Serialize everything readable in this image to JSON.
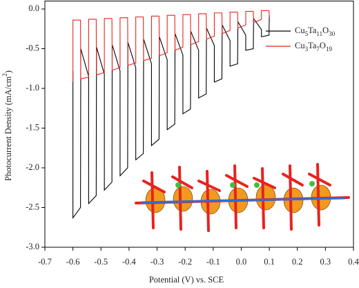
{
  "chart_data": {
    "type": "line",
    "xlabel": "Potential (V) vs. SCE",
    "ylabel": "Photocurrent Density (mA/cm2)",
    "xlim": [
      -0.7,
      0.4
    ],
    "ylim": [
      -3.0,
      0.1
    ],
    "xticks": [
      -0.7,
      -0.6,
      -0.5,
      -0.4,
      -0.3,
      -0.2,
      -0.1,
      {
        "value": 0,
        "label": "0.0"
      },
      0.1,
      0.2,
      0.3,
      0.4
    ],
    "yticks": [
      {
        "value": 0,
        "label": "0.0"
      },
      -0.5,
      {
        "value": -1,
        "label": "-1.0"
      },
      -1.5,
      {
        "value": -2,
        "label": "-2.0"
      },
      -2.5,
      {
        "value": -3,
        "label": "-3.0"
      }
    ],
    "grid": false,
    "legend": "upper right",
    "x": [
      -0.6,
      -0.6,
      -0.573,
      -0.572,
      -0.544,
      -0.544,
      -0.517,
      -0.516,
      -0.488,
      -0.488,
      -0.461,
      -0.46,
      -0.432,
      -0.432,
      -0.405,
      -0.404,
      -0.376,
      -0.376,
      -0.349,
      -0.348,
      -0.32,
      -0.32,
      -0.293,
      -0.292,
      -0.264,
      -0.264,
      -0.237,
      -0.236,
      -0.208,
      -0.208,
      -0.181,
      -0.18,
      -0.152,
      -0.152,
      -0.125,
      -0.124,
      -0.096,
      -0.096,
      -0.069,
      -0.068,
      -0.04,
      -0.04,
      -0.013,
      -0.012,
      0.016,
      0.016,
      0.043,
      0.044,
      0.072,
      0.072,
      0.099,
      0.1
    ],
    "series": [
      {
        "name": "Cu5Ta11O30",
        "color": "#000000",
        "values": [
          -0.78,
          -2.63,
          -2.5,
          -0.5,
          -0.85,
          -2.45,
          -2.35,
          -0.48,
          -0.82,
          -2.28,
          -2.18,
          -0.45,
          -0.78,
          -2.1,
          -2.0,
          -0.42,
          -0.74,
          -1.9,
          -1.82,
          -0.38,
          -0.69,
          -1.72,
          -1.64,
          -0.35,
          -0.64,
          -1.52,
          -1.45,
          -0.31,
          -0.58,
          -1.32,
          -1.26,
          -0.28,
          -0.52,
          -1.12,
          -1.07,
          -0.24,
          -0.46,
          -0.92,
          -0.88,
          -0.2,
          -0.4,
          -0.72,
          -0.69,
          -0.16,
          -0.33,
          -0.52,
          -0.5,
          -0.12,
          -0.26,
          -0.35,
          -0.33,
          -0.08
        ]
      },
      {
        "name": "Cu3Ta7O19",
        "color": "#e8221f",
        "values": [
          -0.92,
          -0.14,
          -0.14,
          -0.88,
          -0.86,
          -0.13,
          -0.13,
          -0.83,
          -0.8,
          -0.12,
          -0.12,
          -0.77,
          -0.74,
          -0.11,
          -0.11,
          -0.71,
          -0.68,
          -0.1,
          -0.1,
          -0.65,
          -0.62,
          -0.09,
          -0.09,
          -0.59,
          -0.55,
          -0.08,
          -0.08,
          -0.52,
          -0.48,
          -0.07,
          -0.07,
          -0.45,
          -0.41,
          -0.06,
          -0.06,
          -0.38,
          -0.34,
          -0.05,
          -0.05,
          -0.31,
          -0.27,
          -0.04,
          -0.04,
          -0.24,
          -0.2,
          -0.03,
          -0.03,
          -0.17,
          -0.13,
          -0.02,
          -0.02,
          -0.1
        ]
      }
    ]
  }
}
